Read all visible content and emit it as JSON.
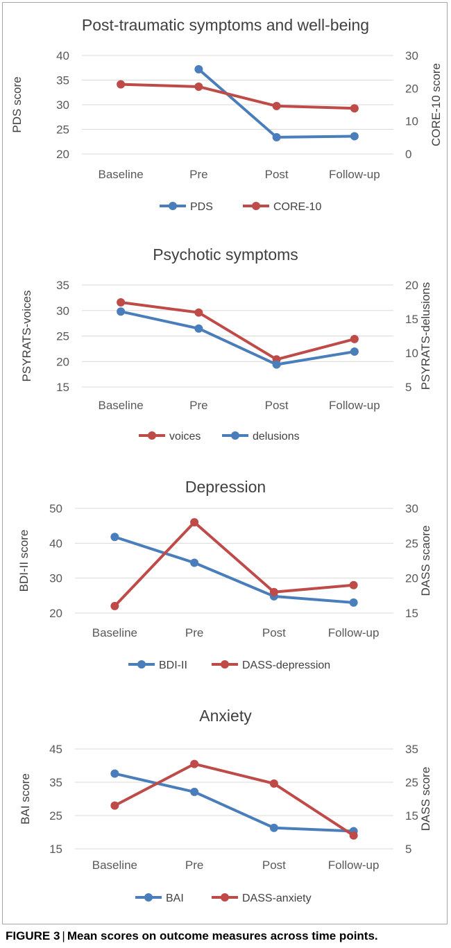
{
  "caption": {
    "label": "FIGURE 3",
    "separator": "|",
    "text": "Mean scores on outcome measures across time points."
  },
  "colors": {
    "blue": "#4a7ebb",
    "red": "#be4b48",
    "grid": "#d9d9d9",
    "text": "#595959"
  },
  "chart_data": [
    {
      "type": "line",
      "title": "Post-traumatic symptoms and well-being",
      "categories": [
        "Baseline",
        "Pre",
        "Post",
        "Follow-up"
      ],
      "ylabel": "PDS score",
      "y2label": "CORE-10 score",
      "ylim": [
        20,
        40
      ],
      "yticks": [
        20,
        25,
        30,
        35,
        40
      ],
      "y2lim": [
        0,
        30
      ],
      "y2ticks": [
        0,
        10,
        20,
        30
      ],
      "grid": true,
      "legend_position": "bottom",
      "series": [
        {
          "name": "PDS",
          "color": "blue",
          "axis": "left",
          "values": [
            null,
            37.2,
            23.4,
            23.6
          ]
        },
        {
          "name": "CORE-10",
          "color": "red",
          "axis": "right",
          "values": [
            21.2,
            20.5,
            14.6,
            13.9
          ]
        }
      ]
    },
    {
      "type": "line",
      "title": "Psychotic symptoms",
      "categories": [
        "Baseline",
        "Pre",
        "Post",
        "Follow-up"
      ],
      "ylabel": "PSYRATS-voices",
      "y2label": "PSYRATS-delusions",
      "ylim": [
        15,
        35
      ],
      "yticks": [
        15,
        20,
        25,
        30,
        35
      ],
      "y2lim": [
        5,
        20
      ],
      "y2ticks": [
        5,
        10,
        15,
        20
      ],
      "grid": true,
      "legend_position": "bottom",
      "series": [
        {
          "name": "voices",
          "color": "red",
          "axis": "left",
          "values": [
            31.6,
            29.6,
            20.4,
            24.4
          ]
        },
        {
          "name": "delusions",
          "color": "blue",
          "axis": "right",
          "values": [
            16.1,
            13.6,
            8.3,
            10.2
          ]
        }
      ]
    },
    {
      "type": "line",
      "title": "Depression",
      "categories": [
        "Baseline",
        "Pre",
        "Post",
        "Follow-up"
      ],
      "ylabel": "BDI-II  score",
      "y2label": "DASS scaore",
      "ylim": [
        20,
        50
      ],
      "yticks": [
        20,
        30,
        40,
        50
      ],
      "y2lim": [
        15,
        30
      ],
      "y2ticks": [
        15,
        20,
        25,
        30
      ],
      "grid": true,
      "legend_position": "bottom",
      "series": [
        {
          "name": "BDI-II",
          "color": "blue",
          "axis": "left",
          "values": [
            41.8,
            34.4,
            24.8,
            23.0
          ]
        },
        {
          "name": "DASS-depression",
          "color": "red",
          "axis": "right",
          "values": [
            16.0,
            28.0,
            18.0,
            19.0
          ]
        }
      ]
    },
    {
      "type": "line",
      "title": "Anxiety",
      "categories": [
        "Baseline",
        "Pre",
        "Post",
        "Follow-up"
      ],
      "ylabel": "BAI score",
      "y2label": "DASS score",
      "ylim": [
        15,
        45
      ],
      "yticks": [
        15,
        25,
        35,
        45
      ],
      "y2lim": [
        5,
        35
      ],
      "y2ticks": [
        5,
        15,
        25,
        35
      ],
      "grid": true,
      "legend_position": "bottom",
      "series": [
        {
          "name": "BAI",
          "color": "blue",
          "axis": "left",
          "values": [
            37.6,
            32.1,
            21.3,
            20.3
          ]
        },
        {
          "name": "DASS-anxiety",
          "color": "red",
          "axis": "right",
          "values": [
            18.0,
            30.5,
            24.6,
            9.0
          ]
        }
      ]
    }
  ]
}
